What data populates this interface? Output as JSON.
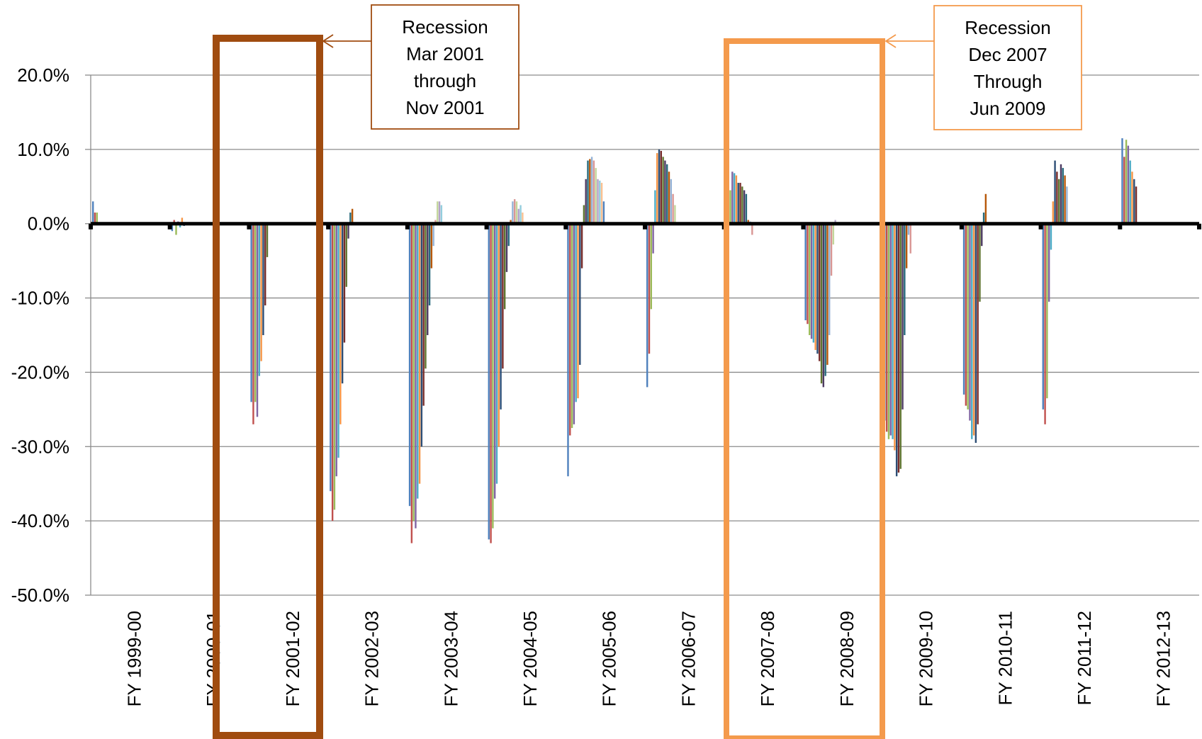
{
  "chart_data": {
    "type": "bar",
    "title": "",
    "xlabel": "",
    "ylabel": "",
    "ylim": [
      -50,
      20
    ],
    "y_ticks": [
      "20.0%",
      "10.0%",
      "0.0%",
      "-10.0%",
      "-20.0%",
      "-30.0%",
      "-40.0%",
      "-50.0%"
    ],
    "grid": true,
    "legend": "none",
    "categories": [
      "FY 1999-00",
      "FY 2000-01",
      "FY 2001-02",
      "FY 2002-03",
      "FY 2003-04",
      "FY 2004-05",
      "FY 2005-06",
      "FY 2006-07",
      "FY 2007-08",
      "FY 2008-09",
      "FY 2009-10",
      "FY 2010-11",
      "FY 2011-12",
      "FY 2012-13"
    ],
    "values_by_category": [
      [
        3.0,
        1.5,
        1.5
      ],
      [
        -1.0,
        0.5,
        -1.5,
        0.3,
        -0.5,
        0.8,
        -0.3
      ],
      [
        -24,
        -27,
        -24,
        -26,
        -20.5,
        -18.5,
        -15,
        -11,
        -4.5
      ],
      [
        -36,
        -40,
        -38.5,
        -34,
        -31.5,
        -27,
        -21.5,
        -16,
        -8.5,
        -2,
        1.5,
        2
      ],
      [
        -38,
        -43,
        -40,
        -41,
        -37,
        -35,
        -30,
        -24.5,
        -19.5,
        -15,
        -11,
        -6,
        -3,
        0.5,
        3,
        3,
        2.5
      ],
      [
        -42.5,
        -43,
        -41,
        -37,
        -35,
        -30,
        -25,
        -19.5,
        -11.5,
        -6.5,
        -3,
        0.5,
        3,
        3.3,
        3,
        2,
        2.5,
        1.5
      ],
      [
        -34,
        -28.5,
        -27.5,
        -27,
        -24,
        -23.5,
        -19,
        -6,
        2.5,
        6,
        8.5,
        8.7,
        9,
        8.5,
        7.5,
        6,
        5.8,
        5.5,
        3
      ],
      [
        -22,
        -17.5,
        -11.5,
        -4,
        4.5,
        9.5,
        10,
        9.8,
        9,
        8.5,
        8,
        7,
        6,
        4,
        2.5
      ],
      [
        -3.5,
        1.5,
        4.5,
        7,
        6.8,
        6.5,
        5.5,
        5.5,
        5,
        4.5,
        4,
        0.5,
        0.3,
        -1.5
      ],
      [
        -13,
        -13.5,
        -15,
        -15.5,
        -16,
        -17,
        -17.5,
        -18.5,
        -21.5,
        -22,
        -20.5,
        -19,
        -15,
        -7,
        -2.8,
        0.5
      ],
      [
        -26.5,
        -28,
        -29,
        -28.5,
        -29,
        -30.5,
        -34,
        -33.5,
        -33,
        -25,
        -15,
        -6,
        -1.5,
        -4
      ],
      [
        -23,
        -24.5,
        -25,
        -26.5,
        -29,
        -28.5,
        -29.5,
        -27,
        -10.5,
        -3,
        1.5,
        4
      ],
      [
        -25,
        -27,
        -23.5,
        -10.5,
        -3.5,
        3,
        8.5,
        7,
        6,
        8,
        7.5,
        6.5,
        5
      ],
      [
        11.5,
        9,
        11.3,
        10.5,
        8.5,
        7,
        6,
        5
      ]
    ]
  },
  "annotations": [
    {
      "lines": [
        "Recession",
        "Mar 2001",
        "through",
        "Nov 2001"
      ],
      "color": "#a04c10"
    },
    {
      "lines": [
        "Recession",
        "Dec 2007",
        "Through",
        "Jun 2009"
      ],
      "color": "#f49a4c"
    }
  ],
  "colors": {
    "grid": "#8c8c8c",
    "axis": "#000000",
    "bar_palette": [
      "#4f81bd",
      "#c0504d",
      "#9bbb59",
      "#8064a2",
      "#4bacc6",
      "#f79646",
      "#2c4d75",
      "#772c2a",
      "#5f7530",
      "#4d3b62",
      "#276a7c",
      "#b65708",
      "#95b3d7",
      "#d99694",
      "#c3d69b",
      "#b3a2c7",
      "#93cddd",
      "#fac090"
    ]
  }
}
